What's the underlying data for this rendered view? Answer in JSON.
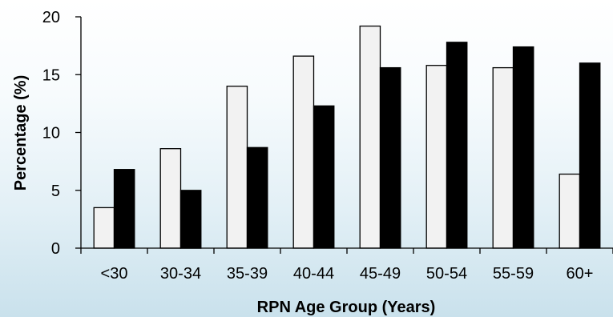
{
  "chart_data": {
    "type": "bar",
    "title": "",
    "xlabel": "RPN Age Group (Years)",
    "ylabel": "Percentage (%)",
    "categories": [
      "<30",
      "30-34",
      "35-39",
      "40-44",
      "45-49",
      "50-54",
      "55-59",
      "60+"
    ],
    "series": [
      {
        "values": [
          3.5,
          8.6,
          14.0,
          16.6,
          19.2,
          15.8,
          15.6,
          6.4
        ],
        "color": "#f2f2f2"
      },
      {
        "values": [
          6.8,
          5.0,
          8.7,
          12.3,
          15.6,
          17.8,
          17.4,
          16.0
        ],
        "color": "#000000"
      }
    ],
    "ylim": [
      0,
      20
    ],
    "yticks": [
      0,
      5,
      10,
      15,
      20
    ],
    "grid": false,
    "legend": "none"
  }
}
